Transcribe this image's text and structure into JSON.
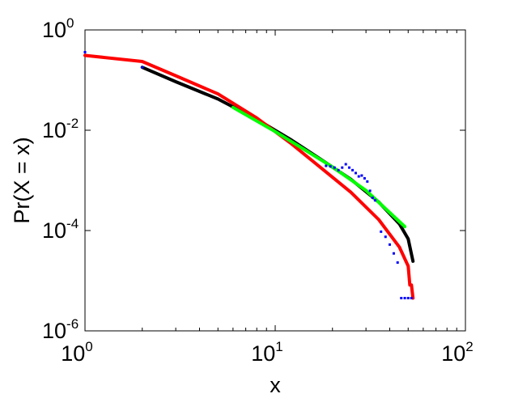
{
  "chart_data": {
    "type": "scatter",
    "title": "",
    "xlabel": "x",
    "ylabel": "Pr(X = x)",
    "xscale": "log",
    "yscale": "log",
    "xlim": [
      1,
      100
    ],
    "ylim": [
      1e-06,
      1
    ],
    "grid": false,
    "legend": "none",
    "x_ticks": [
      {
        "base": "10",
        "exp": "0",
        "value": 1
      },
      {
        "base": "10",
        "exp": "1",
        "value": 10
      },
      {
        "base": "10",
        "exp": "2",
        "value": 100
      }
    ],
    "y_ticks": [
      {
        "base": "10",
        "exp": "0",
        "value": 1
      },
      {
        "base": "10",
        "exp": "-2",
        "value": 0.01
      },
      {
        "base": "10",
        "exp": "-4",
        "value": 0.0001
      },
      {
        "base": "10",
        "exp": "-6",
        "value": 1e-06
      }
    ],
    "series": [
      {
        "style": "points",
        "color": "#0000ff",
        "points": [
          [
            1.0,
            0.36
          ],
          [
            2.0,
            0.18
          ],
          [
            18.5,
            0.00195
          ],
          [
            19.5,
            0.0019
          ],
          [
            20.5,
            0.0018
          ],
          [
            21.5,
            0.0016
          ],
          [
            22.5,
            0.0018
          ],
          [
            23.5,
            0.0021
          ],
          [
            24.5,
            0.0018
          ],
          [
            25.5,
            0.0016
          ],
          [
            26.5,
            0.0014
          ],
          [
            27.5,
            0.0012
          ],
          [
            28.5,
            0.00125
          ],
          [
            29.5,
            0.0011
          ],
          [
            30.5,
            0.00095
          ],
          [
            31.5,
            0.00062
          ],
          [
            32.5,
            0.00045
          ],
          [
            33.5,
            0.0004
          ],
          [
            36.0,
            9.5e-05
          ],
          [
            38.0,
            7.5e-05
          ],
          [
            40.0,
            5.25e-05
          ],
          [
            42.0,
            3.5e-05
          ],
          [
            44.0,
            2.3e-05
          ],
          [
            46.0,
            4.5e-06
          ],
          [
            48.0,
            4.5e-06
          ],
          [
            50.0,
            4.5e-06
          ],
          [
            52.0,
            4.5e-06
          ]
        ]
      },
      {
        "style": "line",
        "color": "#000000",
        "points": [
          [
            2.0,
            0.18
          ],
          [
            3.0,
            0.093
          ],
          [
            5.0,
            0.042
          ],
          [
            8.0,
            0.0165
          ],
          [
            12.0,
            0.0066
          ],
          [
            18.0,
            0.0024
          ],
          [
            25.0,
            0.00105
          ],
          [
            35.0,
            0.00037
          ],
          [
            45.0,
            0.000135
          ],
          [
            50.0,
            6.8e-05
          ],
          [
            53.0,
            2.45e-05
          ]
        ]
      },
      {
        "style": "line",
        "color": "#ff0000",
        "points": [
          [
            1.0,
            0.31
          ],
          [
            2.0,
            0.235
          ],
          [
            3.0,
            0.122
          ],
          [
            5.0,
            0.053
          ],
          [
            8.0,
            0.0176
          ],
          [
            12.0,
            0.0056
          ],
          [
            18.0,
            0.0016
          ],
          [
            25.0,
            0.00058
          ],
          [
            35.0,
            0.000165
          ],
          [
            45.0,
            4.65e-05
          ],
          [
            50.0,
            1.95e-05
          ],
          [
            51.0,
            8.2e-06
          ],
          [
            52.0,
            8.2e-06
          ],
          [
            53.0,
            4.5e-06
          ]
        ]
      },
      {
        "style": "line",
        "color": "#00ff00",
        "points": [
          [
            6.0,
            0.0285
          ],
          [
            10.0,
            0.0094
          ],
          [
            20.0,
            0.00185
          ],
          [
            30.0,
            0.00063
          ],
          [
            48.0,
            0.00012
          ]
        ]
      }
    ]
  }
}
